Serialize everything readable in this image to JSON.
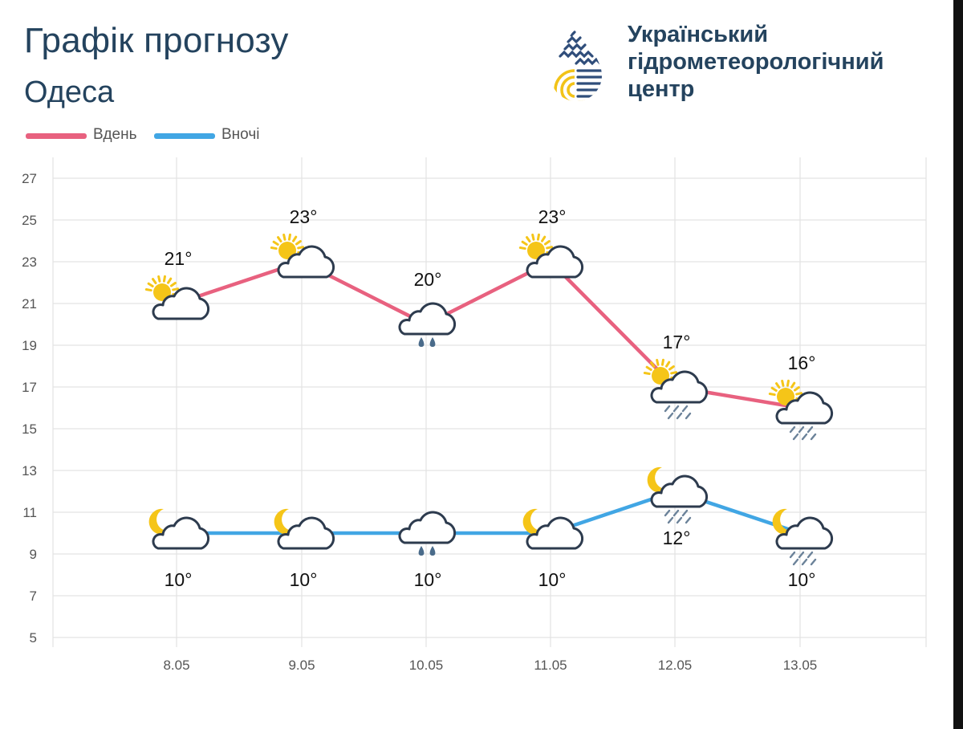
{
  "header": {
    "title": "Графік прогнозу",
    "city": "Одеса",
    "org_lines": [
      "Український",
      "гідрометеорологічний",
      "центр"
    ]
  },
  "colors": {
    "day": "#e8617f",
    "night": "#41a6e4",
    "text_dark": "#24435e",
    "logo_blue": "#2f4d7a",
    "logo_yellow": "#f2c318",
    "sun": "#f5c518",
    "grid": "#e3e3e3"
  },
  "chart_data": {
    "type": "line",
    "title": "Графік прогнозу",
    "subtitle": "Одеса",
    "categories": [
      "8.05",
      "9.05",
      "10.05",
      "11.05",
      "12.05",
      "13.05"
    ],
    "y_ticks": [
      27,
      25,
      23,
      21,
      19,
      17,
      15,
      13,
      11,
      9,
      7,
      5
    ],
    "ylim": [
      5,
      27
    ],
    "grid": true,
    "legend_position": "top-left",
    "series": [
      {
        "name": "Вдень",
        "color": "#e8617f",
        "values": [
          21,
          23,
          20,
          23,
          17,
          16
        ],
        "labels": [
          "21°",
          "23°",
          "20°",
          "23°",
          "17°",
          "16°"
        ],
        "icons": [
          "sun-cloud-icon",
          "sun-cloud-icon",
          "rain-cloud-icon",
          "sun-cloud-icon",
          "sun-cloud-shower-icon",
          "sun-cloud-shower-icon"
        ]
      },
      {
        "name": "Вночі",
        "color": "#41a6e4",
        "values": [
          10,
          10,
          10,
          10,
          12,
          10
        ],
        "labels": [
          "10°",
          "10°",
          "10°",
          "10°",
          "12°",
          "10°"
        ],
        "icons": [
          "moon-cloud-icon",
          "moon-cloud-icon",
          "rain-cloud-icon",
          "moon-cloud-icon",
          "moon-cloud-shower-icon",
          "moon-cloud-shower-icon"
        ]
      }
    ]
  }
}
